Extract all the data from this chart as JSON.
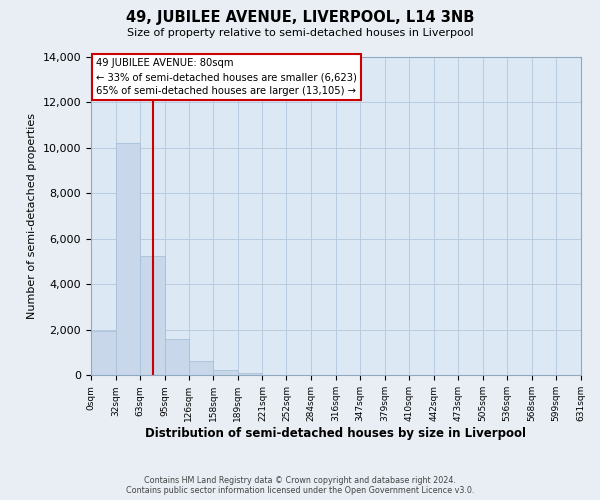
{
  "title": "49, JUBILEE AVENUE, LIVERPOOL, L14 3NB",
  "subtitle": "Size of property relative to semi-detached houses in Liverpool",
  "xlabel": "Distribution of semi-detached houses by size in Liverpool",
  "ylabel": "Number of semi-detached properties",
  "bar_color": "#c8d8ea",
  "bar_edge_color": "#a8c0d8",
  "bar_left_edges": [
    0,
    32,
    63,
    95,
    126,
    158,
    189,
    221,
    252,
    284,
    316,
    347,
    379,
    410,
    442,
    473,
    505,
    536,
    568,
    599
  ],
  "bar_widths": [
    32,
    31,
    32,
    31,
    32,
    31,
    32,
    31,
    32,
    32,
    31,
    32,
    31,
    32,
    31,
    32,
    31,
    32,
    31,
    32
  ],
  "bar_heights": [
    1950,
    10200,
    5250,
    1575,
    650,
    230,
    90,
    30,
    20,
    10,
    0,
    0,
    0,
    0,
    0,
    0,
    0,
    0,
    0,
    0
  ],
  "tick_labels": [
    "0sqm",
    "32sqm",
    "63sqm",
    "95sqm",
    "126sqm",
    "158sqm",
    "189sqm",
    "221sqm",
    "252sqm",
    "284sqm",
    "316sqm",
    "347sqm",
    "379sqm",
    "410sqm",
    "442sqm",
    "473sqm",
    "505sqm",
    "536sqm",
    "568sqm",
    "599sqm",
    "631sqm"
  ],
  "tick_positions": [
    0,
    32,
    63,
    95,
    126,
    158,
    189,
    221,
    252,
    284,
    316,
    347,
    379,
    410,
    442,
    473,
    505,
    536,
    568,
    599,
    631
  ],
  "ylim": [
    0,
    14000
  ],
  "xlim": [
    0,
    631
  ],
  "property_value": 80,
  "property_line_color": "#cc0000",
  "annotation_line1": "49 JUBILEE AVENUE: 80sqm",
  "annotation_line2": "← 33% of semi-detached houses are smaller (6,623)",
  "annotation_line3": "65% of semi-detached houses are larger (13,105) →",
  "annotation_box_color": "#ffffff",
  "annotation_box_edge_color": "#cc0000",
  "footer_line1": "Contains HM Land Registry data © Crown copyright and database right 2024.",
  "footer_line2": "Contains public sector information licensed under the Open Government Licence v3.0.",
  "background_color": "#e8eef4",
  "plot_background_color": "#dce8f4",
  "grid_color": "#b8cce0",
  "yticks": [
    0,
    2000,
    4000,
    6000,
    8000,
    10000,
    12000,
    14000
  ]
}
